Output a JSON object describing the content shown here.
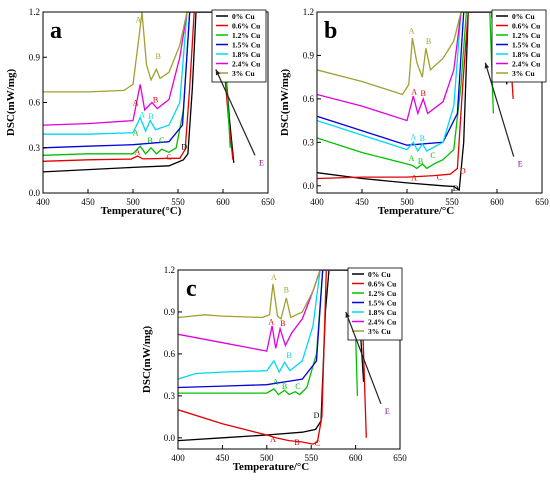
{
  "figure": {
    "legend_entries": [
      "0% Cu",
      "0.6% Cu",
      "1.2% Cu",
      "1.5% Cu",
      "1.8% Cu",
      "2.4% Cu",
      "3% Cu"
    ]
  },
  "chart_data": [
    {
      "type": "line",
      "panel_label": "a",
      "xlabel": "Temperature(°C)",
      "ylabel": "DSC(mW/mg)",
      "xlim": [
        400,
        650
      ],
      "ylim": [
        0,
        1.2
      ],
      "x_ticks": [
        400,
        450,
        500,
        550,
        600,
        650
      ],
      "y_ticks": [
        0.0,
        0.3,
        0.6,
        0.9,
        1.2
      ],
      "legend_position": "top-right",
      "annotations": [
        "A",
        "B",
        "C",
        "D",
        "E"
      ],
      "series": [
        {
          "name": "0% Cu",
          "color": "#000000",
          "x": [
            400,
            450,
            500,
            540,
            556,
            561,
            566,
            570,
            575,
            582,
            596,
            602,
            607,
            612
          ],
          "y": [
            0.14,
            0.155,
            0.17,
            0.18,
            0.22,
            0.26,
            0.7,
            1.2,
            1.2,
            1.2,
            1.2,
            0.9,
            0.5,
            0.2
          ]
        },
        {
          "name": "0.6% Cu",
          "color": "#e00000",
          "x": [
            400,
            450,
            498,
            505,
            511,
            540,
            552,
            558,
            563,
            568,
            573,
            585,
            596,
            601,
            606,
            611
          ],
          "y": [
            0.21,
            0.22,
            0.225,
            0.245,
            0.226,
            0.23,
            0.23,
            0.29,
            0.7,
            1.2,
            1.2,
            1.2,
            1.2,
            0.85,
            0.5,
            0.22
          ]
        },
        {
          "name": "1.2% Cu",
          "color": "#00c000",
          "x": [
            400,
            450,
            500,
            508,
            514,
            520,
            526,
            532,
            540,
            548,
            556,
            563,
            568,
            585,
            598,
            603,
            608
          ],
          "y": [
            0.25,
            0.26,
            0.26,
            0.31,
            0.26,
            0.3,
            0.26,
            0.29,
            0.27,
            0.3,
            0.55,
            1.2,
            1.2,
            1.2,
            1.2,
            0.85,
            0.3
          ]
        },
        {
          "name": "1.5% Cu",
          "color": "#0000e0",
          "x": [
            400,
            450,
            500,
            540,
            555,
            563,
            567,
            580,
            596,
            601
          ],
          "y": [
            0.3,
            0.31,
            0.32,
            0.34,
            0.45,
            1.2,
            1.2,
            1.2,
            1.2,
            0.9
          ]
        },
        {
          "name": "1.8% Cu",
          "color": "#00d8f0",
          "x": [
            400,
            450,
            500,
            508,
            514,
            519,
            525,
            540,
            552,
            560,
            566,
            585,
            596,
            600
          ],
          "y": [
            0.39,
            0.39,
            0.4,
            0.5,
            0.41,
            0.48,
            0.42,
            0.45,
            0.6,
            1.2,
            1.2,
            1.2,
            1.2,
            0.85
          ]
        },
        {
          "name": "2.4% Cu",
          "color": "#e000e0",
          "x": [
            400,
            450,
            500,
            508,
            513,
            521,
            527,
            540,
            552,
            560,
            566,
            585,
            596,
            600
          ],
          "y": [
            0.45,
            0.46,
            0.48,
            0.72,
            0.55,
            0.6,
            0.56,
            0.62,
            0.9,
            1.2,
            1.2,
            1.2,
            1.2,
            0.9
          ]
        },
        {
          "name": "3% Cu",
          "color": "#a0a030",
          "x": [
            400,
            450,
            490,
            500,
            507,
            510,
            515,
            520,
            526,
            530,
            540,
            552,
            560,
            566,
            585,
            596,
            600
          ],
          "y": [
            0.67,
            0.67,
            0.68,
            0.72,
            1.05,
            1.2,
            0.85,
            0.75,
            0.82,
            0.76,
            0.8,
            0.98,
            1.2,
            1.2,
            1.2,
            1.2,
            0.9
          ]
        }
      ]
    },
    {
      "type": "line",
      "panel_label": "b",
      "xlabel": "Temperature/°C",
      "ylabel": "DSC(mW/mg)",
      "xlim": [
        400,
        650
      ],
      "ylim": [
        -0.05,
        1.2
      ],
      "x_ticks": [
        400,
        450,
        500,
        550,
        600,
        650
      ],
      "y_ticks": [
        0.0,
        0.3,
        0.6,
        0.9,
        1.2
      ],
      "legend_position": "top-right",
      "annotations": [
        "A",
        "B",
        "C",
        "D",
        "E"
      ],
      "series": [
        {
          "name": "0% Cu",
          "color": "#000000",
          "x": [
            400,
            450,
            500,
            540,
            552,
            558,
            563,
            568,
            575,
            590,
            603,
            607,
            611
          ],
          "y": [
            0.09,
            0.05,
            0.02,
            0.0,
            -0.005,
            -0.03,
            0.3,
            1.2,
            1.2,
            1.2,
            1.2,
            0.9,
            0.7
          ]
        },
        {
          "name": "0.6% Cu",
          "color": "#e00000",
          "x": [
            400,
            450,
            500,
            530,
            548,
            556,
            562,
            568,
            575,
            590,
            605,
            612,
            618
          ],
          "y": [
            0.05,
            0.06,
            0.06,
            0.07,
            0.08,
            0.12,
            0.7,
            1.2,
            1.2,
            1.2,
            1.2,
            1.15,
            0.6
          ]
        },
        {
          "name": "1.2% Cu",
          "color": "#00c000",
          "x": [
            400,
            450,
            500,
            506,
            511,
            517,
            522,
            530,
            540,
            552,
            560,
            566,
            580,
            592,
            596
          ],
          "y": [
            0.33,
            0.23,
            0.15,
            0.14,
            0.12,
            0.15,
            0.12,
            0.15,
            0.18,
            0.25,
            0.7,
            1.2,
            1.2,
            1.2,
            0.5
          ]
        },
        {
          "name": "1.5% Cu",
          "color": "#0000e0",
          "x": [
            400,
            450,
            500,
            540,
            556,
            563,
            568,
            585,
            594,
            598
          ],
          "y": [
            0.48,
            0.38,
            0.28,
            0.3,
            0.5,
            1.2,
            1.2,
            1.2,
            1.2,
            0.9
          ]
        },
        {
          "name": "1.8% Cu",
          "color": "#00d8f0",
          "x": [
            400,
            450,
            500,
            507,
            512,
            517,
            522,
            540,
            552,
            560,
            566,
            585,
            594,
            598
          ],
          "y": [
            0.45,
            0.35,
            0.25,
            0.3,
            0.24,
            0.29,
            0.24,
            0.3,
            0.55,
            1.2,
            1.2,
            1.2,
            1.2,
            0.85
          ]
        },
        {
          "name": "2.4% Cu",
          "color": "#e000e0",
          "x": [
            400,
            450,
            500,
            507,
            512,
            518,
            523,
            540,
            552,
            560,
            566,
            585,
            594,
            598
          ],
          "y": [
            0.63,
            0.55,
            0.45,
            0.62,
            0.5,
            0.6,
            0.5,
            0.58,
            0.8,
            1.2,
            1.2,
            1.2,
            1.2,
            0.9
          ]
        },
        {
          "name": "3% Cu",
          "color": "#a0a030",
          "x": [
            400,
            450,
            495,
            502,
            506,
            511,
            517,
            521,
            526,
            540,
            552,
            560,
            566,
            585,
            594,
            598
          ],
          "y": [
            0.8,
            0.72,
            0.63,
            0.7,
            1.02,
            0.85,
            0.75,
            0.95,
            0.8,
            0.88,
            1.0,
            1.2,
            1.2,
            1.2,
            1.2,
            0.9
          ]
        }
      ]
    },
    {
      "type": "line",
      "panel_label": "c",
      "xlabel": "Temperature/°C",
      "ylabel": "DSC(mW/mg)",
      "xlim": [
        400,
        650
      ],
      "ylim": [
        -0.08,
        1.2
      ],
      "x_ticks": [
        400,
        450,
        500,
        550,
        600,
        650
      ],
      "y_ticks": [
        0.0,
        0.3,
        0.6,
        0.9,
        1.2
      ],
      "legend_position": "top-right",
      "annotations": [
        "A",
        "B",
        "C",
        "D",
        "E"
      ],
      "series": [
        {
          "name": "0% Cu",
          "color": "#000000",
          "x": [
            400,
            450,
            500,
            540,
            555,
            561,
            566,
            570,
            580,
            598,
            604,
            609
          ],
          "y": [
            -0.02,
            0.0,
            0.02,
            0.04,
            0.06,
            0.12,
            0.9,
            1.2,
            1.2,
            1.2,
            0.9,
            0.4
          ]
        },
        {
          "name": "0.6% Cu",
          "color": "#e00000",
          "x": [
            400,
            450,
            500,
            510,
            525,
            540,
            552,
            557,
            562,
            567,
            573,
            590,
            606,
            612
          ],
          "y": [
            0.2,
            0.1,
            0.02,
            0.0,
            -0.02,
            -0.03,
            -0.045,
            -0.03,
            0.15,
            1.2,
            1.2,
            1.2,
            1.2,
            0.0
          ]
        },
        {
          "name": "1.2% Cu",
          "color": "#00c000",
          "x": [
            400,
            450,
            500,
            508,
            513,
            520,
            525,
            532,
            537,
            545,
            556,
            563,
            568,
            585,
            598,
            602
          ],
          "y": [
            0.32,
            0.32,
            0.32,
            0.35,
            0.31,
            0.34,
            0.31,
            0.33,
            0.31,
            0.36,
            0.6,
            1.2,
            1.2,
            1.2,
            1.2,
            0.3
          ]
        },
        {
          "name": "1.5% Cu",
          "color": "#0000e0",
          "x": [
            400,
            450,
            500,
            540,
            556,
            563,
            568,
            585,
            596,
            600
          ],
          "y": [
            0.36,
            0.37,
            0.38,
            0.42,
            0.55,
            1.2,
            1.2,
            1.2,
            1.2,
            0.9
          ]
        },
        {
          "name": "1.8% Cu",
          "color": "#00d8f0",
          "x": [
            400,
            420,
            450,
            500,
            508,
            514,
            520,
            526,
            540,
            552,
            560,
            566,
            585,
            596,
            600
          ],
          "y": [
            0.42,
            0.46,
            0.47,
            0.48,
            0.55,
            0.47,
            0.54,
            0.48,
            0.55,
            0.8,
            1.2,
            1.2,
            1.2,
            1.2,
            0.85
          ]
        },
        {
          "name": "2.4% Cu",
          "color": "#e000e0",
          "x": [
            400,
            450,
            500,
            506,
            510,
            515,
            521,
            528,
            540,
            552,
            560,
            566,
            585,
            596,
            600
          ],
          "y": [
            0.74,
            0.68,
            0.62,
            0.8,
            0.64,
            0.78,
            0.66,
            0.75,
            0.85,
            1.05,
            1.2,
            1.2,
            1.2,
            1.2,
            0.9
          ]
        },
        {
          "name": "3% Cu",
          "color": "#a0a030",
          "x": [
            400,
            430,
            450,
            495,
            503,
            507,
            512,
            516,
            522,
            527,
            540,
            552,
            560,
            566,
            585,
            596,
            600
          ],
          "y": [
            0.86,
            0.88,
            0.87,
            0.86,
            0.88,
            1.1,
            0.87,
            0.85,
            1.0,
            0.86,
            0.9,
            1.05,
            1.2,
            1.2,
            1.2,
            1.2,
            0.9
          ]
        }
      ]
    }
  ]
}
